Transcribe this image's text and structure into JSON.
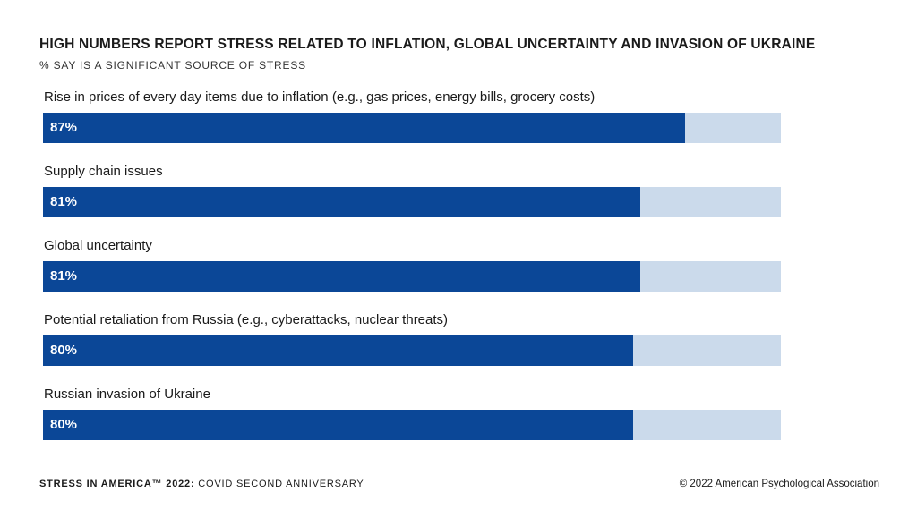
{
  "header": {
    "title": "HIGH NUMBERS REPORT STRESS RELATED TO INFLATION, GLOBAL UNCERTAINTY AND INVASION OF UKRAINE",
    "subtitle": "% SAY IS A SIGNIFICANT SOURCE OF STRESS"
  },
  "chart_data": {
    "type": "bar",
    "orientation": "horizontal",
    "title": "HIGH NUMBERS REPORT STRESS RELATED TO INFLATION, GLOBAL UNCERTAINTY AND INVASION OF UKRAINE",
    "subtitle": "% SAY IS A SIGNIFICANT SOURCE OF STRESS",
    "categories": [
      "Rise in prices of every day items due to inflation (e.g., gas prices, energy bills, grocery costs)",
      "Supply chain issues",
      "Global uncertainty",
      "Potential retaliation from Russia (e.g., cyberattacks, nuclear threats)",
      "Russian invasion of Ukraine"
    ],
    "values": [
      87,
      81,
      81,
      80,
      80
    ],
    "value_labels": [
      "87%",
      "81%",
      "81%",
      "80%",
      "80%"
    ],
    "xlim": [
      0,
      100
    ],
    "grid": false,
    "colors": {
      "bar": "#0b4797",
      "track": "#cbdaeb"
    }
  },
  "footer": {
    "series_bold": "STRESS IN AMERICA™ 2022:",
    "series_rest": " COVID SECOND ANNIVERSARY",
    "copyright": "© 2022 American Psychological Association"
  }
}
